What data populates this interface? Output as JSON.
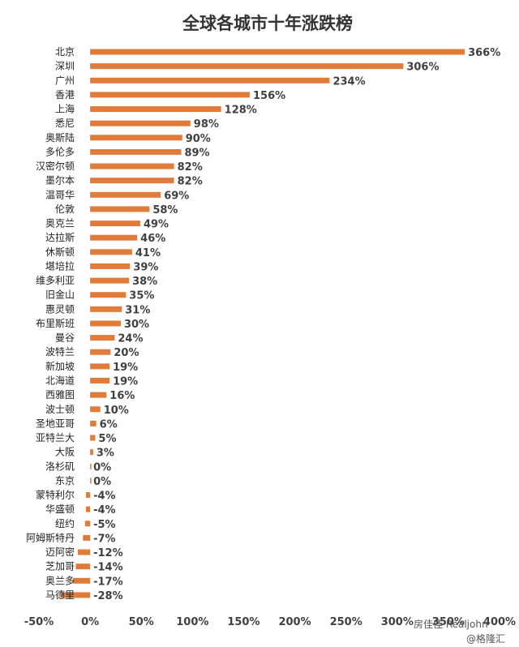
{
  "chart_data": {
    "type": "bar",
    "orientation": "horizontal",
    "title": "全球各城市十年涨跌榜",
    "xlabel": "",
    "ylabel": "",
    "xlim": [
      -50,
      400
    ],
    "x_ticks": [
      "-50%",
      "0%",
      "50%",
      "100%",
      "150%",
      "200%",
      "250%",
      "300%",
      "350%",
      "400%"
    ],
    "grid": false,
    "legend": "none",
    "bar_color": "#E07B39",
    "categories": [
      "北京",
      "深圳",
      "广州",
      "香港",
      "上海",
      "悉尼",
      "奥斯陆",
      "多伦多",
      "汉密尔顿",
      "墨尔本",
      "温哥华",
      "伦敦",
      "奥克兰",
      "达拉斯",
      "休斯顿",
      "堪培拉",
      "维多利亚",
      "旧金山",
      "惠灵顿",
      "布里斯班",
      "曼谷",
      "波特兰",
      "新加坡",
      "北海道",
      "西雅图",
      "波士顿",
      "圣地亚哥",
      "亚特兰大",
      "大阪",
      "洛杉矶",
      "东京",
      "蒙特利尔",
      "华盛顿",
      "纽约",
      "阿姆斯特丹",
      "迈阿密",
      "芝加哥",
      "奥兰多",
      "马德里"
    ],
    "values": [
      366,
      306,
      234,
      156,
      128,
      98,
      90,
      89,
      82,
      82,
      69,
      58,
      49,
      46,
      41,
      39,
      38,
      35,
      31,
      30,
      24,
      20,
      19,
      19,
      16,
      10,
      6,
      5,
      3,
      0,
      0,
      -4,
      -4,
      -5,
      -7,
      -12,
      -14,
      -17,
      -28
    ],
    "value_labels": [
      "366%",
      "306%",
      "234%",
      "156%",
      "128%",
      "98%",
      "90%",
      "89%",
      "82%",
      "82%",
      "69%",
      "58%",
      "49%",
      "46%",
      "41%",
      "39%",
      "38%",
      "35%",
      "31%",
      "30%",
      "24%",
      "20%",
      "19%",
      "19%",
      "16%",
      "10%",
      "6%",
      "5%",
      "3%",
      "0%",
      "0%",
      "-4%",
      "-4%",
      "-5%",
      "-7%",
      "-12%",
      "-14%",
      "-17%",
      "-28%"
    ]
  },
  "credits": {
    "source": "房佳佳 Realjohn",
    "brand": "@格隆汇"
  }
}
